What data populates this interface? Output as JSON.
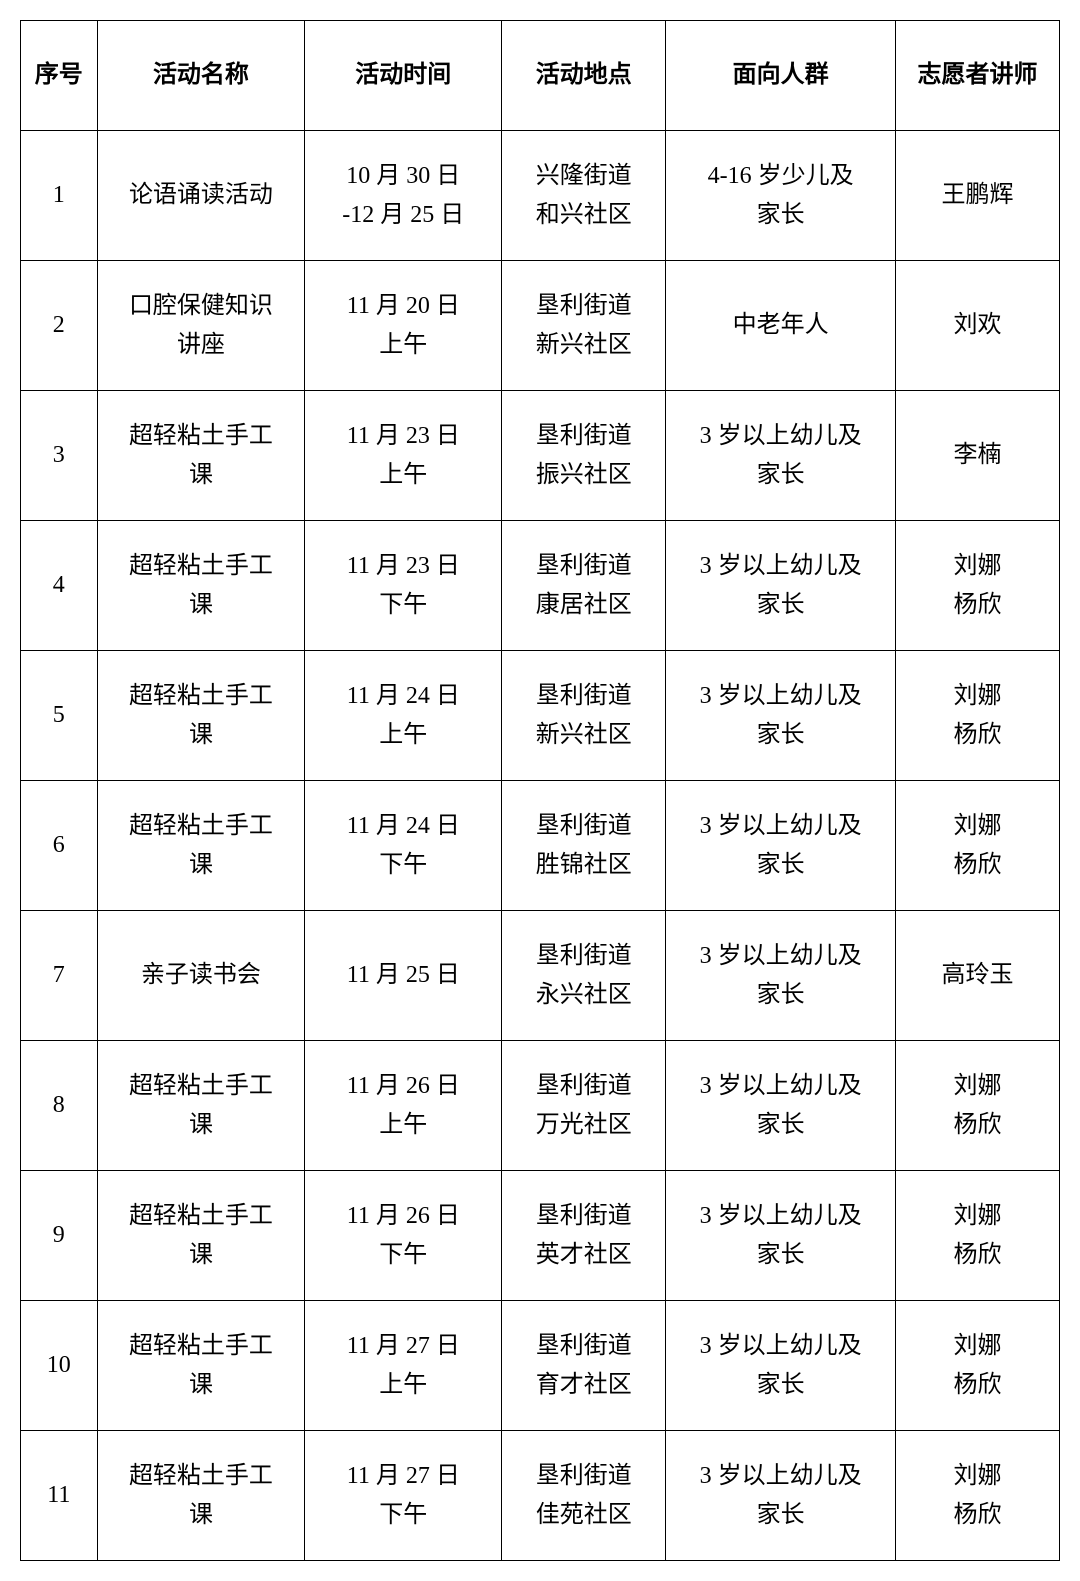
{
  "table": {
    "headers": {
      "num": "序号",
      "name": "活动名称",
      "time": "活动时间",
      "location": "活动地点",
      "audience": "面向人群",
      "instructor": "志愿者讲师"
    },
    "rows": [
      {
        "num": "1",
        "name": "论语诵读活动",
        "time": "10 月 30 日\n-12 月 25 日",
        "location": "兴隆街道\n和兴社区",
        "audience": "4-16 岁少儿及\n家长",
        "instructor": "王鹏辉"
      },
      {
        "num": "2",
        "name": "口腔保健知识\n讲座",
        "time": "11 月 20 日\n上午",
        "location": "垦利街道\n新兴社区",
        "audience": "中老年人",
        "instructor": "刘欢"
      },
      {
        "num": "3",
        "name": "超轻粘土手工\n课",
        "time": "11 月 23 日\n上午",
        "location": "垦利街道\n振兴社区",
        "audience": "3 岁以上幼儿及\n家长",
        "instructor": "李楠"
      },
      {
        "num": "4",
        "name": "超轻粘土手工\n课",
        "time": "11 月 23 日\n下午",
        "location": "垦利街道\n康居社区",
        "audience": "3 岁以上幼儿及\n家长",
        "instructor": "刘娜\n杨欣"
      },
      {
        "num": "5",
        "name": "超轻粘土手工\n课",
        "time": "11 月 24 日\n上午",
        "location": "垦利街道\n新兴社区",
        "audience": "3 岁以上幼儿及\n家长",
        "instructor": "刘娜\n杨欣"
      },
      {
        "num": "6",
        "name": "超轻粘土手工\n课",
        "time": "11 月 24 日\n下午",
        "location": "垦利街道\n胜锦社区",
        "audience": "3 岁以上幼儿及\n家长",
        "instructor": "刘娜\n杨欣"
      },
      {
        "num": "7",
        "name": "亲子读书会",
        "time": "11 月 25 日",
        "location": "垦利街道\n永兴社区",
        "audience": "3 岁以上幼儿及\n家长",
        "instructor": "高玲玉"
      },
      {
        "num": "8",
        "name": "超轻粘土手工\n课",
        "time": "11 月 26 日\n上午",
        "location": "垦利街道\n万光社区",
        "audience": "3 岁以上幼儿及\n家长",
        "instructor": "刘娜\n杨欣"
      },
      {
        "num": "9",
        "name": "超轻粘土手工\n课",
        "time": "11 月 26 日\n下午",
        "location": "垦利街道\n英才社区",
        "audience": "3 岁以上幼儿及\n家长",
        "instructor": "刘娜\n杨欣"
      },
      {
        "num": "10",
        "name": "超轻粘土手工\n课",
        "time": "11 月 27 日\n上午",
        "location": "垦利街道\n育才社区",
        "audience": "3 岁以上幼儿及\n家长",
        "instructor": "刘娜\n杨欣"
      },
      {
        "num": "11",
        "name": "超轻粘土手工\n课",
        "time": "11 月 27 日\n下午",
        "location": "垦利街道\n佳苑社区",
        "audience": "3 岁以上幼儿及\n家长",
        "instructor": "刘娜\n杨欣"
      }
    ]
  }
}
